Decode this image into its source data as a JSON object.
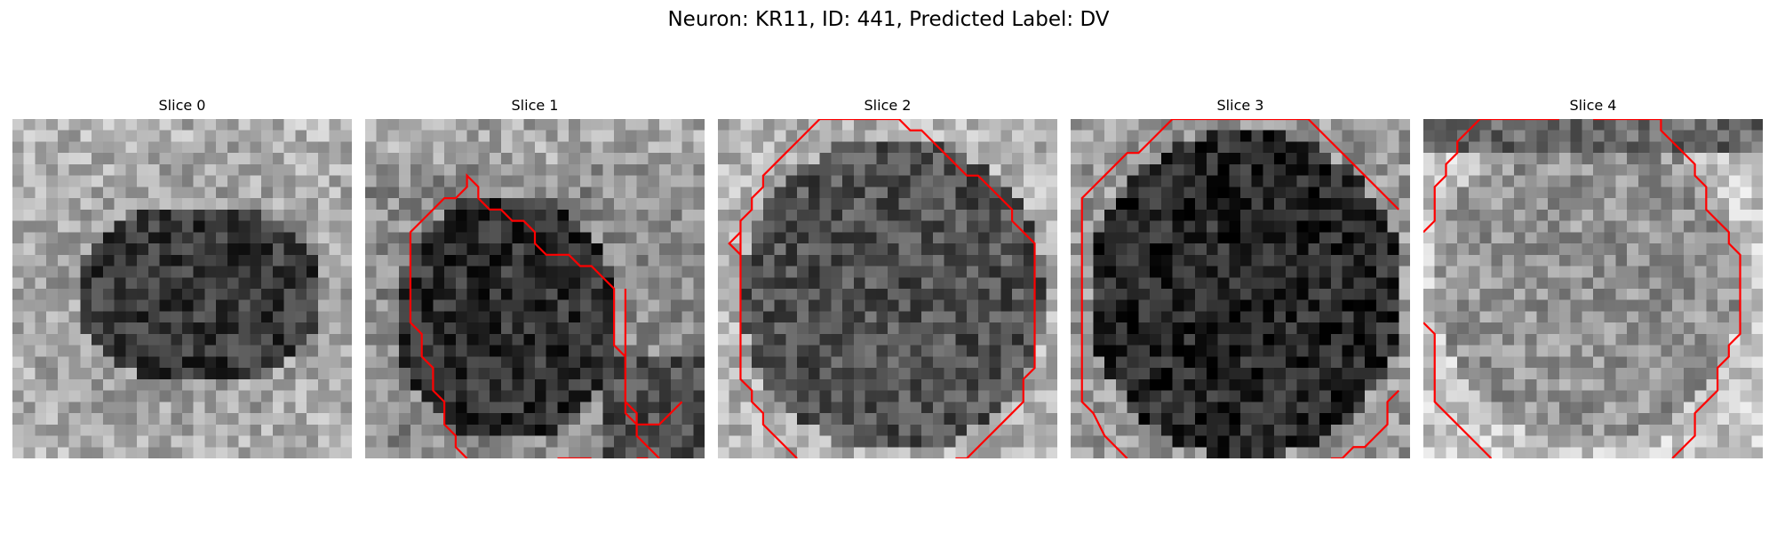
{
  "figure": {
    "title": "Neuron: KR11, ID: 441, Predicted Label: DV"
  },
  "panels": [
    {
      "label": "Slice 0",
      "segments": []
    },
    {
      "label": "Slice 1",
      "segments": [
        [
          [
            26,
            30
          ],
          [
            24,
            28
          ],
          [
            24,
            26
          ],
          [
            23,
            25
          ],
          [
            23,
            21
          ],
          [
            22,
            20
          ],
          [
            22,
            15
          ],
          [
            21,
            14
          ],
          [
            20,
            13
          ],
          [
            19,
            13
          ],
          [
            18,
            12
          ],
          [
            16,
            12
          ],
          [
            15,
            11
          ],
          [
            15,
            10
          ],
          [
            14,
            9
          ],
          [
            13,
            9
          ],
          [
            12,
            8
          ],
          [
            11,
            8
          ],
          [
            10,
            7
          ],
          [
            10,
            6
          ],
          [
            9,
            5
          ],
          [
            9,
            6
          ],
          [
            8,
            7
          ],
          [
            7,
            7
          ],
          [
            6,
            8
          ],
          [
            5,
            9
          ],
          [
            4,
            10
          ],
          [
            4,
            12
          ],
          [
            4,
            18
          ],
          [
            5,
            19
          ],
          [
            5,
            21
          ],
          [
            6,
            22
          ],
          [
            6,
            24
          ],
          [
            7,
            25
          ],
          [
            7,
            27
          ],
          [
            8,
            28
          ],
          [
            8,
            29
          ],
          [
            9,
            30
          ]
        ],
        [
          [
            20,
            30
          ],
          [
            18,
            30
          ],
          [
            17,
            30
          ]
        ],
        [
          [
            24,
            30
          ],
          [
            25,
            30
          ]
        ],
        [
          [
            23,
            15
          ],
          [
            23,
            21
          ],
          [
            23,
            26
          ],
          [
            24,
            27
          ],
          [
            25,
            27
          ],
          [
            26,
            27
          ],
          [
            27,
            26
          ],
          [
            28,
            25
          ]
        ]
      ]
    },
    {
      "label": "Slice 2",
      "segments": [
        [
          [
            7,
            30
          ],
          [
            6,
            29
          ],
          [
            5,
            28
          ],
          [
            4,
            27
          ],
          [
            4,
            26
          ],
          [
            3,
            25
          ],
          [
            3,
            24
          ],
          [
            2,
            23
          ],
          [
            2,
            22
          ],
          [
            2,
            21
          ],
          [
            2,
            16
          ],
          [
            2,
            14
          ],
          [
            2,
            12
          ],
          [
            2,
            10
          ],
          [
            2,
            9
          ],
          [
            3,
            8
          ],
          [
            3,
            7
          ],
          [
            4,
            6
          ],
          [
            4,
            5
          ],
          [
            5,
            4
          ],
          [
            6,
            3
          ],
          [
            7,
            2
          ],
          [
            8,
            1
          ],
          [
            9,
            0
          ],
          [
            10,
            0
          ],
          [
            16,
            0
          ],
          [
            17,
            1
          ],
          [
            18,
            1
          ],
          [
            19,
            2
          ],
          [
            20,
            3
          ],
          [
            21,
            4
          ],
          [
            22,
            5
          ],
          [
            23,
            5
          ],
          [
            24,
            6
          ],
          [
            25,
            7
          ],
          [
            26,
            8
          ],
          [
            26,
            9
          ],
          [
            27,
            10
          ],
          [
            28,
            11
          ],
          [
            28,
            14
          ],
          [
            28,
            18
          ],
          [
            28,
            20
          ],
          [
            28,
            22
          ],
          [
            27,
            23
          ],
          [
            27,
            25
          ],
          [
            26,
            26
          ],
          [
            25,
            27
          ],
          [
            24,
            28
          ],
          [
            23,
            29
          ],
          [
            22,
            30
          ],
          [
            21,
            30
          ]
        ],
        [
          [
            2,
            10
          ],
          [
            1,
            11
          ],
          [
            2,
            12
          ]
        ]
      ]
    },
    {
      "label": "Slice 3",
      "segments": [
        [
          [
            5,
            30
          ],
          [
            4,
            29
          ],
          [
            3,
            28
          ],
          [
            2,
            26
          ],
          [
            1,
            25
          ],
          [
            1,
            22
          ],
          [
            1,
            15
          ],
          [
            1,
            8
          ],
          [
            1,
            7
          ],
          [
            2,
            6
          ],
          [
            3,
            5
          ],
          [
            4,
            4
          ],
          [
            5,
            3
          ],
          [
            6,
            3
          ],
          [
            7,
            2
          ],
          [
            8,
            1
          ],
          [
            9,
            0
          ],
          [
            21,
            0
          ],
          [
            22,
            1
          ],
          [
            23,
            2
          ],
          [
            24,
            3
          ],
          [
            25,
            4
          ],
          [
            26,
            5
          ],
          [
            27,
            6
          ],
          [
            28,
            7
          ],
          [
            29,
            8
          ]
        ],
        [
          [
            29,
            24
          ],
          [
            28,
            25
          ],
          [
            28,
            27
          ],
          [
            27,
            28
          ],
          [
            26,
            29
          ],
          [
            25,
            29
          ],
          [
            24,
            30
          ],
          [
            23,
            30
          ]
        ]
      ]
    },
    {
      "label": "Slice 4",
      "segments": [
        [
          [
            6,
            30
          ],
          [
            5,
            29
          ],
          [
            4,
            28
          ],
          [
            3,
            27
          ],
          [
            2,
            26
          ],
          [
            1,
            25
          ],
          [
            1,
            22
          ],
          [
            1,
            19
          ],
          [
            0,
            18
          ]
        ],
        [
          [
            0,
            10
          ],
          [
            1,
            9
          ],
          [
            1,
            8
          ],
          [
            1,
            6
          ],
          [
            2,
            5
          ],
          [
            2,
            4
          ],
          [
            3,
            3
          ],
          [
            3,
            2
          ],
          [
            4,
            1
          ],
          [
            5,
            0
          ],
          [
            6,
            -1
          ],
          [
            7,
            -1
          ],
          [
            8,
            -2
          ],
          [
            11,
            -2
          ],
          [
            12,
            -3
          ]
        ],
        [
          [
            15,
            -3
          ],
          [
            16,
            -2
          ],
          [
            18,
            -2
          ],
          [
            19,
            -1
          ],
          [
            20,
            -1
          ],
          [
            21,
            0
          ],
          [
            21,
            1
          ],
          [
            22,
            2
          ],
          [
            23,
            3
          ],
          [
            24,
            4
          ],
          [
            24,
            5
          ],
          [
            25,
            6
          ],
          [
            25,
            8
          ],
          [
            26,
            9
          ],
          [
            27,
            10
          ],
          [
            27,
            11
          ],
          [
            28,
            12
          ],
          [
            28,
            16
          ],
          [
            28,
            19
          ],
          [
            27,
            20
          ],
          [
            27,
            21
          ],
          [
            26,
            22
          ],
          [
            26,
            24
          ],
          [
            25,
            25
          ],
          [
            24,
            26
          ],
          [
            24,
            28
          ],
          [
            23,
            29
          ],
          [
            22,
            30
          ]
        ]
      ]
    }
  ]
}
